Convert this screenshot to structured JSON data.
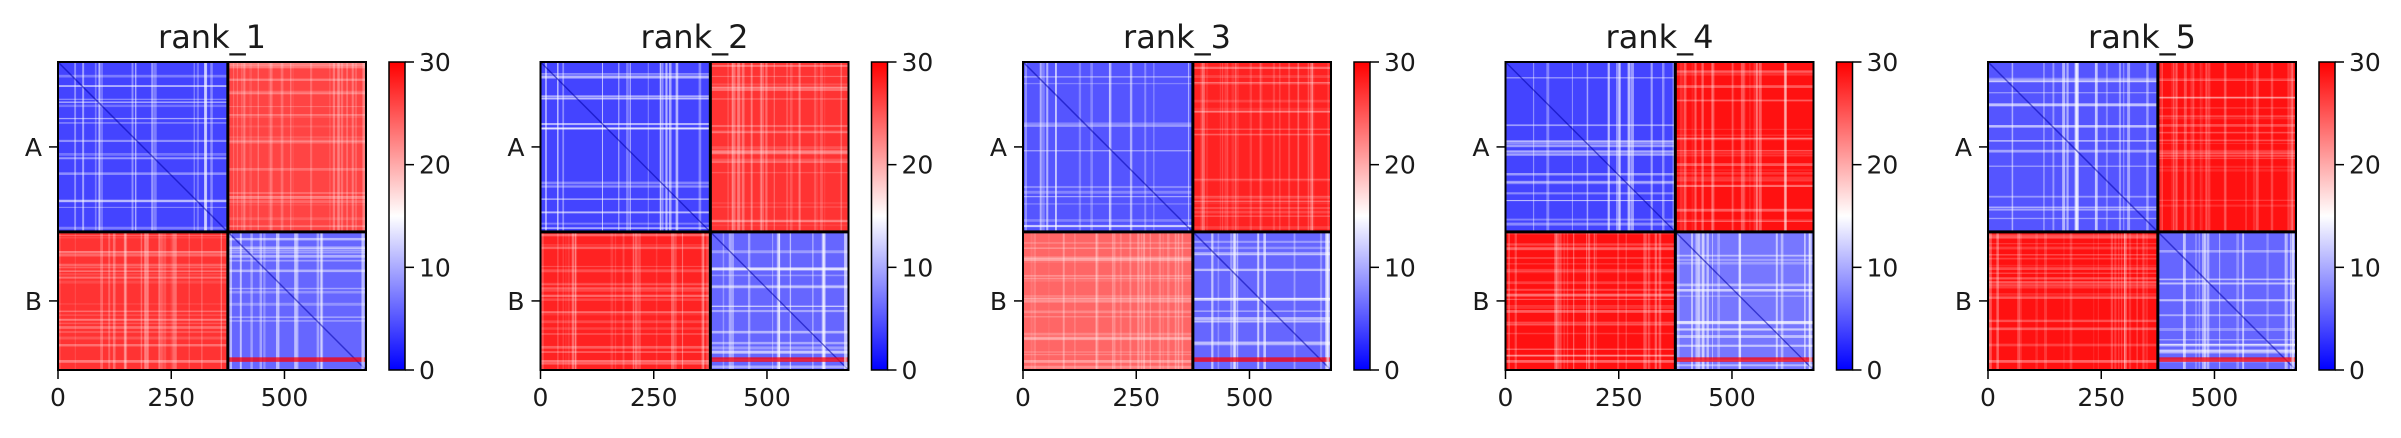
{
  "chart_data": {
    "type": "heatmap",
    "colormap": "bwr",
    "colormap_colors": [
      "#0000ff",
      "#ffffff",
      "#ff0000"
    ],
    "color_range": [
      0,
      30
    ],
    "chain_boundary": 375,
    "total_length": 680,
    "xlim": [
      0,
      680
    ],
    "x_ticks": [
      0,
      250,
      500
    ],
    "x_tick_labels": [
      "0",
      "250",
      "500"
    ],
    "y_tick_labels": [
      "A",
      "B"
    ],
    "colorbar_ticks": [
      0,
      10,
      20,
      30
    ],
    "colorbar_tick_labels": [
      "0",
      "10",
      "20",
      "30"
    ],
    "panels": [
      {
        "title": "rank_1",
        "intra_A": 4,
        "intra_B": 6,
        "inter_AB": 26,
        "inter_BA": 27
      },
      {
        "title": "rank_2",
        "intra_A": 4,
        "intra_B": 6,
        "inter_AB": 27,
        "inter_BA": 28
      },
      {
        "title": "rank_3",
        "intra_A": 5,
        "intra_B": 6,
        "inter_AB": 28,
        "inter_BA": 24
      },
      {
        "title": "rank_4",
        "intra_A": 4,
        "intra_B": 7,
        "inter_AB": 29,
        "inter_BA": 29
      },
      {
        "title": "rank_5",
        "intra_A": 5,
        "intra_B": 6,
        "inter_AB": 29,
        "inter_BA": 29
      }
    ]
  }
}
